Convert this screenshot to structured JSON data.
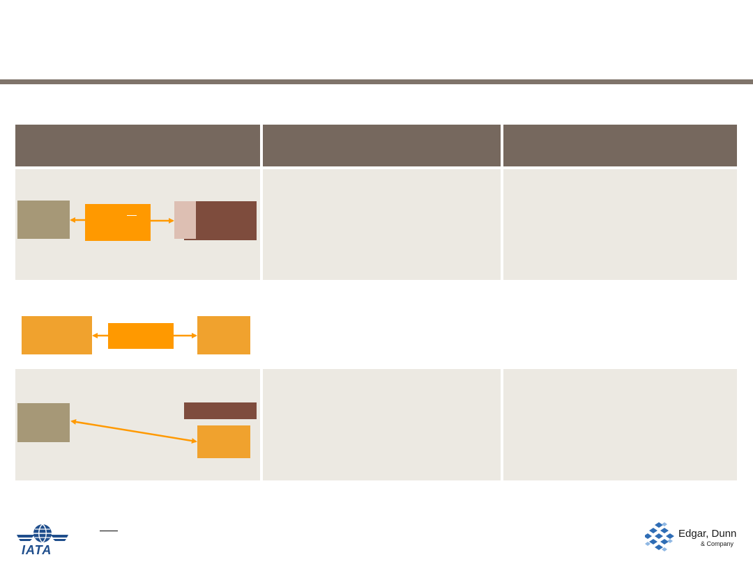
{
  "slide": {
    "title": "",
    "table": {
      "headers": [
        "",
        "",
        ""
      ],
      "rows": [
        {
          "col2": "",
          "col3": ""
        },
        {
          "col2": "",
          "col3": ""
        },
        {
          "col2": "",
          "col3": ""
        }
      ]
    }
  },
  "logos": {
    "left": "IATA",
    "right_line1": "Edgar, Dunn",
    "right_line2": "& Company"
  },
  "colors": {
    "accent_rule": "#7f746a",
    "header_fill": "#76685e",
    "row_fill": "#ece9e2",
    "orange": "#ff9900",
    "light_orange": "#f0a22e",
    "tan": "#a69877",
    "brown": "#7e4c3d",
    "pink": "#ddbfb3"
  }
}
